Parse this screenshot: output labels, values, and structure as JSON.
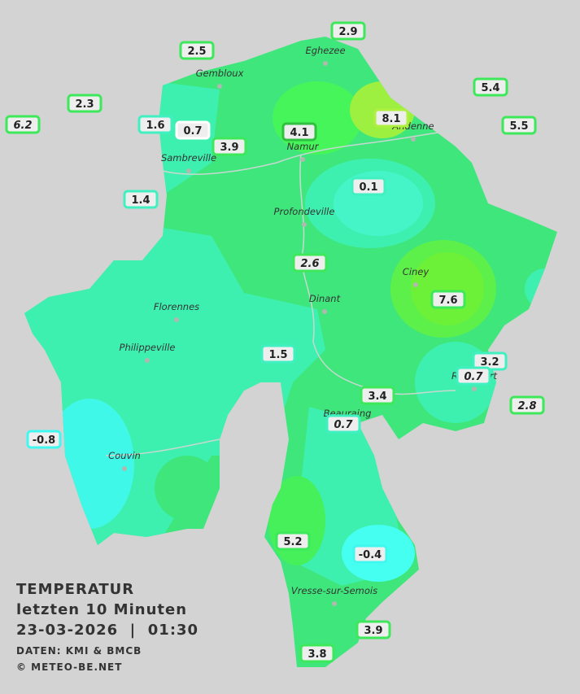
{
  "header": {
    "title": "TEMPERATUR",
    "subtitle": "letzten 10 Minuten",
    "datetime": "23-03-2026  |  01:30",
    "source": "DATEN: KMI & BMCB",
    "copyright": "© METEO-BE.NET"
  },
  "cities": [
    "Eghezee",
    "Gembloux",
    "Andenne",
    "Namur",
    "Sambreville",
    "Profondeville",
    "Ciney",
    "Dinant",
    "Florennes",
    "Philippeville",
    "Beauraing",
    "Rochefort",
    "Couvin",
    "Vresse-sur-Semois"
  ],
  "stations": [
    2.9,
    2.5,
    5.4,
    2.3,
    6.2,
    1.6,
    0.7,
    4.1,
    3.9,
    8.1,
    5.5,
    0.1,
    1.4,
    2.6,
    7.6,
    1.5,
    3.2,
    0.7,
    2.8,
    3.4,
    0.7,
    -0.8,
    5.2,
    -0.4,
    3.9,
    3.8
  ]
}
